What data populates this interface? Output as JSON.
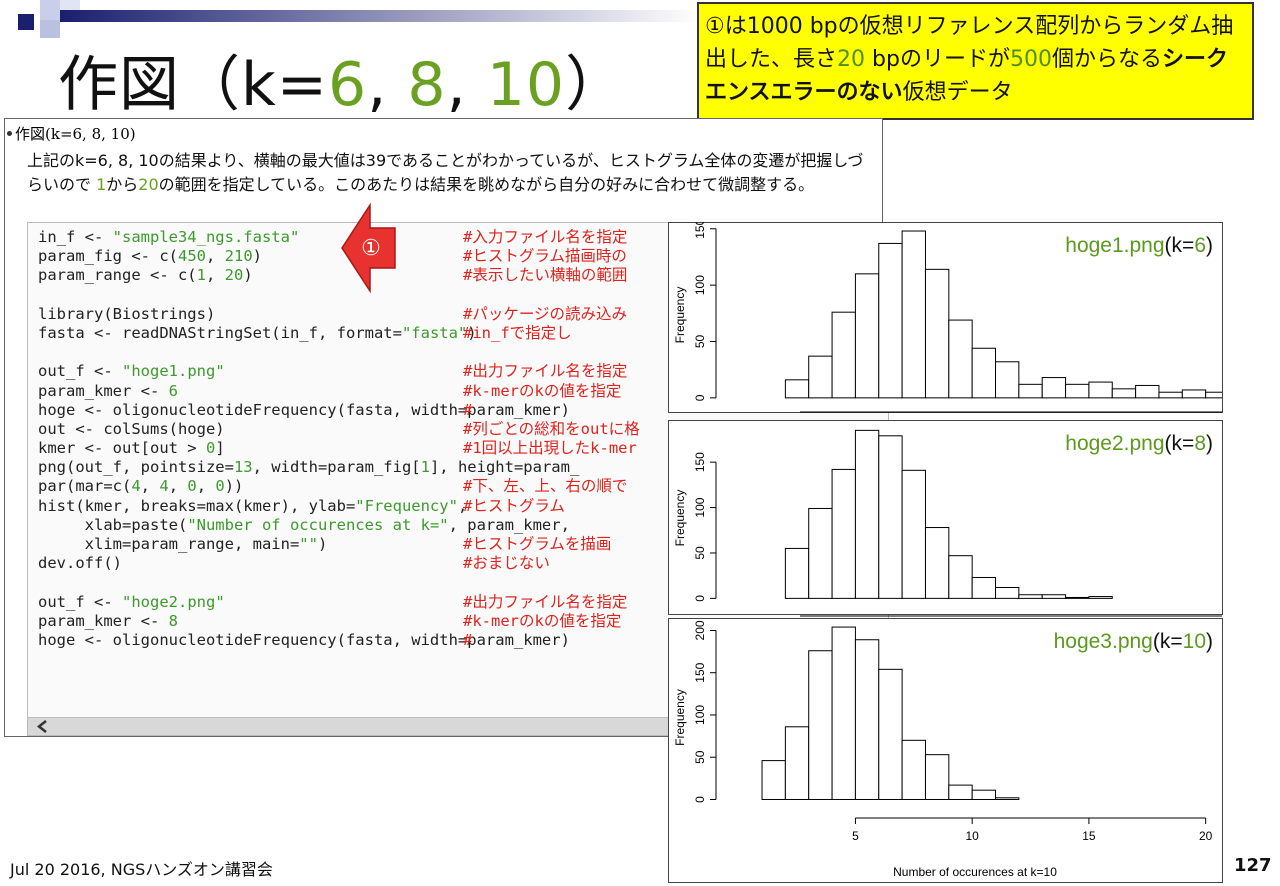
{
  "slide_title": "作図（k=6, 8, 10）",
  "callout": [
    {
      "text": "①は1000 bpの仮想リファレンス配列からランダム抽出した、長さ"
    },
    {
      "text": "20",
      "color": "#4f8f1f"
    },
    {
      "text": " bpのリードが"
    },
    {
      "text": "500",
      "color": "#4f8f1f"
    },
    {
      "text": "個からなる"
    },
    {
      "text": "シークエンスエラーのない",
      "bold": true
    },
    {
      "text": "仮想データ"
    }
  ],
  "bullet": "作図(k=6, 8, 10)",
  "paragraph": [
    {
      "text": "上記のk=6, 8, 10の結果より、横軸の最大値は39であることがわかっているが、ヒストグラム全体の変遷が把握しづらいので "
    },
    {
      "text": "1",
      "color": "#6aa121"
    },
    {
      "text": "から"
    },
    {
      "text": "20",
      "color": "#6aa121"
    },
    {
      "text": "の範囲を指定している。このあたりは結果を眺めながら自分の好みに合わせて微調整する。"
    }
  ],
  "arrow_label": "①",
  "code_blocks": [
    [
      {
        "code": "in_f <- \"sample34_ngs.fasta\"",
        "comment": "#入力ファイル名を指定"
      },
      {
        "code": "param_fig <- c(450, 210)",
        "comment": "#ヒストグラム描画時の"
      },
      {
        "code": "param_range <- c(1, 20)",
        "comment": "#表示したい横軸の範囲"
      }
    ],
    [
      {
        "code": "library(Biostrings)",
        "comment": "#パッケージの読み込み"
      },
      {
        "code": "fasta <- readDNAStringSet(in_f, format=\"fasta\")",
        "comment": "#in_fで指定し"
      }
    ],
    [
      {
        "code": "out_f <- \"hoge1.png\"",
        "comment": "#出力ファイル名を指定"
      },
      {
        "code": "param_kmer <- 6",
        "comment": "#k-merのkの値を指定"
      },
      {
        "code": "hoge <- oligonucleotideFrequency(fasta, width=param_kmer)",
        "comment": "#"
      },
      {
        "code": "out <- colSums(hoge)",
        "comment": "#列ごとの総和をoutに格"
      },
      {
        "code": "kmer <- out[out > 0]",
        "comment": "#1回以上出現したk-mer"
      },
      {
        "code": "png(out_f, pointsize=13, width=param_fig[1], height=param_"
      },
      {
        "code": "par(mar=c(4, 4, 0, 0))",
        "comment": "#下、左、上、右の順で"
      },
      {
        "code": "hist(kmer, breaks=max(kmer), ylab=\"Frequency\",",
        "comment": "#ヒストグラム"
      },
      {
        "code": "     xlab=paste(\"Number of occurences at k=\", param_kmer,"
      },
      {
        "code": "     xlim=param_range, main=\"\")",
        "comment": "#ヒストグラムを描画"
      },
      {
        "code": "dev.off()",
        "comment": "#おまじない"
      }
    ],
    [
      {
        "code": "out_f <- \"hoge2.png\"",
        "comment": "#出力ファイル名を指定"
      },
      {
        "code": "param_kmer <- 8",
        "comment": "#k-merのkの値を指定"
      },
      {
        "code": "hoge <- oligonucleotideFrequency(fasta, width=param_kmer)",
        "comment": "#"
      }
    ]
  ],
  "footer": "Jul 20 2016, NGSハンズオン講習会",
  "page_number": "127",
  "chart_data": [
    {
      "type": "histogram",
      "title": "hoge1.png(k=6)",
      "ylabel": "Frequency",
      "color": "#ffffff",
      "bins": [
        2,
        3,
        4,
        5,
        6,
        7,
        8,
        9,
        10,
        11,
        12,
        13,
        14,
        15,
        16,
        17,
        18,
        19,
        20,
        21
      ],
      "values": [
        16,
        37,
        76,
        110,
        137,
        148,
        114,
        69,
        44,
        32,
        12,
        18,
        12,
        14,
        8,
        11,
        5,
        7,
        5
      ],
      "xlim": [
        -0.8,
        20.7
      ],
      "ylim": [
        -9,
        156
      ],
      "yticks": [
        0,
        50,
        100,
        150
      ]
    },
    {
      "type": "histogram",
      "title": "hoge2.png(k=8)",
      "ylabel": "Frequency",
      "color": "#ffffff",
      "bins": [
        2,
        3,
        4,
        5,
        6,
        7,
        8,
        9,
        10,
        11,
        12,
        13,
        14,
        15,
        16
      ],
      "values": [
        55,
        99,
        142,
        185,
        179,
        141,
        78,
        47,
        23,
        12,
        4,
        4,
        1,
        2
      ],
      "xlim": [
        -0.8,
        20.7
      ],
      "ylim": [
        -15,
        192
      ],
      "yticks": [
        0,
        50,
        100,
        150
      ]
    },
    {
      "type": "histogram",
      "title": "hoge3.png(k=10)",
      "ylabel": "Frequency",
      "xlabel": "Number of occurences at k=10",
      "color": "#ffffff",
      "bins": [
        1,
        2,
        3,
        4,
        5,
        6,
        7,
        8,
        9,
        10,
        11,
        12
      ],
      "values": [
        46,
        86,
        176,
        204,
        189,
        154,
        70,
        53,
        17,
        11,
        2
      ],
      "xlim": [
        -0.8,
        20.7
      ],
      "ylim": [
        -16,
        210
      ],
      "yticks": [
        0,
        50,
        100,
        150,
        200
      ],
      "xticks": [
        5,
        10,
        15,
        20
      ]
    }
  ]
}
